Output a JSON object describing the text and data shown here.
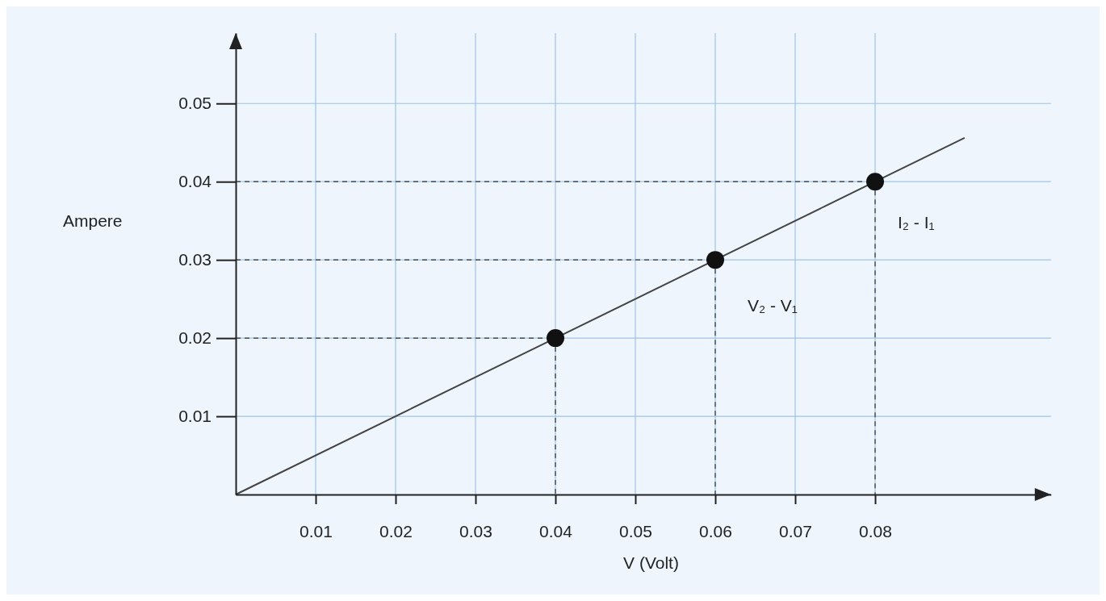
{
  "chart_data": {
    "type": "line",
    "xlabel": "V (Volt)",
    "ylabel": "Ampere",
    "xlim": [
      0,
      0.102
    ],
    "ylim": [
      0,
      0.059
    ],
    "xticks": [
      0.01,
      0.02,
      0.03,
      0.04,
      0.05,
      0.06,
      0.07,
      0.08
    ],
    "yticks": [
      0.01,
      0.02,
      0.03,
      0.04,
      0.05
    ],
    "grid": true,
    "series": [
      {
        "color": "#444444",
        "x": [
          0,
          0.04,
          0.06,
          0.08,
          0.0912
        ],
        "values": [
          0,
          0.02,
          0.03,
          0.04,
          0.0456
        ]
      },
      {
        "color": "#333333",
        "x": [
          0,
          0.04,
          0.04
        ],
        "values": [
          0.02,
          0.02,
          0
        ],
        "line_style": "dashed"
      },
      {
        "color": "#333333",
        "x": [
          0,
          0.06,
          0.06
        ],
        "values": [
          0.03,
          0.03,
          0
        ],
        "line_style": "dashed"
      },
      {
        "color": "#333333",
        "x": [
          0,
          0.08,
          0.08
        ],
        "values": [
          0.04,
          0.04,
          0
        ],
        "line_style": "dashed"
      },
      {
        "type": "scatter",
        "color": "#111111",
        "x": [
          0.04,
          0.06,
          0.08
        ],
        "values": [
          0.02,
          0.03,
          0.04
        ],
        "marker": "circle"
      }
    ],
    "annotations": [
      "V₂ - V₁",
      "I₂ - I₁"
    ]
  }
}
